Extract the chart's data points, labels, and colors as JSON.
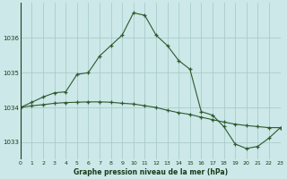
{
  "title": "Graphe pression niveau de la mer (hPa)",
  "background_color": "#cce8e8",
  "grid_color": "#aacccc",
  "line_color": "#2d5a2d",
  "xlim": [
    0,
    23
  ],
  "ylim": [
    1032.5,
    1037.0
  ],
  "yticks": [
    1033,
    1034,
    1035,
    1036
  ],
  "xtick_labels": [
    "0",
    "1",
    "2",
    "3",
    "4",
    "5",
    "6",
    "7",
    "8",
    "9",
    "10",
    "11",
    "12",
    "13",
    "14",
    "15",
    "16",
    "17",
    "18",
    "19",
    "20",
    "21",
    "22",
    "23"
  ],
  "line1_x": [
    0,
    1,
    2,
    3,
    4,
    5,
    6,
    7,
    8,
    9,
    10,
    11,
    12,
    13,
    14,
    15,
    16,
    17,
    18,
    19,
    20,
    21,
    22,
    23
  ],
  "line1_y": [
    1034.0,
    1034.05,
    1034.08,
    1034.12,
    1034.14,
    1034.15,
    1034.16,
    1034.16,
    1034.15,
    1034.12,
    1034.1,
    1034.05,
    1034.0,
    1033.92,
    1033.85,
    1033.8,
    1033.72,
    1033.65,
    1033.58,
    1033.52,
    1033.48,
    1033.45,
    1033.42,
    1033.42
  ],
  "line2_x": [
    0,
    1,
    2,
    3,
    4,
    5,
    6,
    7,
    8,
    9,
    10,
    11,
    12,
    13,
    14,
    15,
    16,
    17,
    18,
    19,
    20,
    21,
    22,
    23
  ],
  "line2_y": [
    1034.0,
    1034.15,
    1034.3,
    1034.42,
    1034.45,
    1034.95,
    1035.0,
    1035.48,
    1035.78,
    1036.08,
    1036.72,
    1036.65,
    1036.08,
    1035.78,
    1035.35,
    1035.1,
    1033.88,
    1033.78,
    1033.45,
    1032.95,
    1032.82,
    1032.88,
    1033.12,
    1033.42
  ]
}
